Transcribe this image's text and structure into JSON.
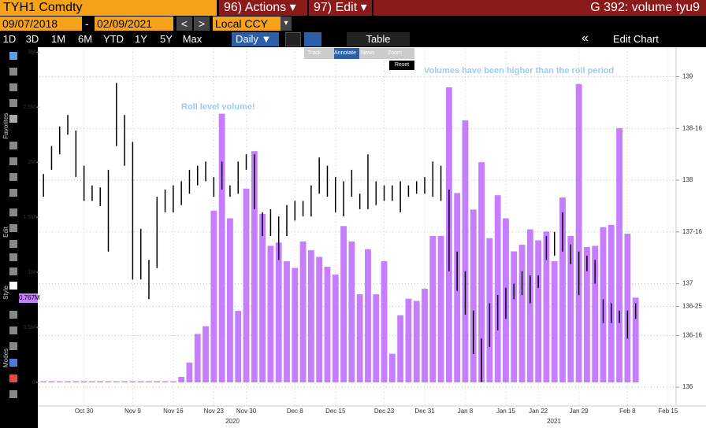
{
  "header": {
    "security": "TYH1 Comdty",
    "actions": "96) Actions ▾",
    "edit": "97) Edit ▾",
    "page_title": "G 392: volume tyu9"
  },
  "range_bar": {
    "start": "09/07/2018",
    "dash": "-",
    "end": "02/09/2021",
    "prev": "<",
    "next": ">",
    "currency": "Local CCY",
    "currency_menu": "▾"
  },
  "periods": [
    "1D",
    "3D",
    "1M",
    "6M",
    "YTD",
    "1Y",
    "5Y",
    "Max"
  ],
  "toolbar": {
    "frequency": "Daily ▼",
    "table": "Table",
    "collapse": "«",
    "edit_chart": "Edit Chart"
  },
  "overlay": {
    "tools": [
      "Track",
      "Annotate",
      "News",
      "Zoom"
    ],
    "reset": "Reset"
  },
  "sidebar": [
    "Favorites",
    "Edit",
    "Style",
    "Modes"
  ],
  "chart_data": {
    "type": "bar",
    "annotations": [
      "Roll level volume!",
      "Volumes have been higher than the roll period"
    ],
    "year_labels": [
      "2020",
      "2021"
    ],
    "last_value": {
      "value": 767000,
      "label": "0.767M"
    },
    "categories": [
      null,
      null,
      null,
      null,
      null,
      "Oct 30",
      null,
      null,
      null,
      null,
      null,
      "Nov 9",
      null,
      null,
      null,
      null,
      "Nov 16",
      null,
      null,
      null,
      null,
      "Nov 23",
      null,
      null,
      null,
      "Nov 30",
      null,
      null,
      null,
      null,
      null,
      "Dec 8",
      null,
      null,
      null,
      null,
      "Dec 15",
      null,
      null,
      null,
      null,
      null,
      "Dec 23",
      null,
      null,
      null,
      null,
      "Dec 31",
      null,
      null,
      null,
      null,
      "Jan 8",
      null,
      null,
      null,
      null,
      "Jan 15",
      null,
      null,
      null,
      "Jan 22",
      null,
      null,
      null,
      null,
      "Jan 29",
      null,
      null,
      null,
      null,
      null,
      "Feb 8",
      null,
      null,
      null,
      null,
      "Feb 15"
    ],
    "volume": {
      "color": "#c77dff",
      "values": [
        10000,
        10000,
        10000,
        10000,
        10000,
        10000,
        10000,
        10000,
        10000,
        10000,
        10000,
        10000,
        10000,
        10000,
        10000,
        10000,
        10000,
        50000,
        180000,
        440000,
        510000,
        1560000,
        2440000,
        1490000,
        650000,
        1760000,
        2100000,
        1530000,
        1240000,
        1270000,
        1100000,
        1040000,
        1280000,
        1200000,
        1140000,
        1050000,
        980000,
        1420000,
        1280000,
        800000,
        1210000,
        800000,
        1100000,
        260000,
        610000,
        760000,
        740000,
        850000,
        1330000,
        1330000,
        2680000,
        1720000,
        2380000,
        1570000,
        2000000,
        1310000,
        1700000,
        1490000,
        1190000,
        1250000,
        1390000,
        1290000,
        1370000,
        1100000,
        1680000,
        1330000,
        2710000,
        1230000,
        1240000,
        1410000,
        1430000,
        2310000,
        1350000,
        770000,
        null,
        null,
        null,
        null
      ]
    },
    "price": {
      "color": "#000000",
      "axis": "y2",
      "high": [
        138.06,
        138.33,
        138.52,
        138.63,
        138.48,
        138.14,
        137.95,
        137.93,
        138.1,
        138.94,
        138.63,
        138.37,
        137.53,
        137.23,
        137.84,
        137.91,
        137.95,
        137.99,
        138.1,
        138.14,
        138.18,
        138.03,
        138.18,
        137.95,
        138.18,
        138.25,
        138.25,
        137.69,
        137.72,
        137.65,
        137.76,
        137.8,
        137.8,
        137.95,
        138.22,
        138.14,
        138.03,
        137.99,
        138.1,
        137.87,
        138.25,
        137.99,
        137.95,
        137.95,
        137.99,
        137.95,
        137.99,
        138.03,
        138.18,
        138.14,
        137.91,
        137.31,
        137.12,
        136.74,
        136.47,
        136.81,
        136.89,
        136.96,
        137.0,
        137.12,
        137.08,
        137.08,
        137.46,
        137.5,
        137.69,
        137.38,
        137.31,
        137.27,
        137.23,
        136.85,
        136.81,
        136.74,
        136.74,
        136.81,
        null,
        null,
        null,
        null
      ],
      "low": [
        137.84,
        138.1,
        138.25,
        138.44,
        138.03,
        137.8,
        137.8,
        137.75,
        137.31,
        138.33,
        138.14,
        137.04,
        137.04,
        136.85,
        137.15,
        137.69,
        137.69,
        137.76,
        137.87,
        137.95,
        137.99,
        137.84,
        137.91,
        137.84,
        137.87,
        138.1,
        137.72,
        137.46,
        137.46,
        137.23,
        137.46,
        137.61,
        137.65,
        137.65,
        137.87,
        137.84,
        137.69,
        137.65,
        137.84,
        137.72,
        137.72,
        137.76,
        137.8,
        137.8,
        137.69,
        137.84,
        137.87,
        137.87,
        137.84,
        137.8,
        137.12,
        136.93,
        136.7,
        136.32,
        136.05,
        136.39,
        136.55,
        136.66,
        136.85,
        136.89,
        136.81,
        136.96,
        137.23,
        137.27,
        137.31,
        137.19,
        136.89,
        137.12,
        137.0,
        136.62,
        136.62,
        136.62,
        136.47,
        136.66,
        null,
        null,
        null,
        null
      ]
    },
    "ylim": [
      -100000,
      3030000
    ],
    "yticks": [
      0,
      {
        "value": 500000,
        "label": "0.5M"
      },
      {
        "value": 1000000,
        "label": "1M"
      },
      {
        "value": 1500000,
        "label": "1.5M"
      },
      {
        "value": 2000000,
        "label": "2M"
      },
      {
        "value": 2500000,
        "label": "2.5M"
      },
      {
        "value": 3000000,
        "label": "3M"
      }
    ],
    "y2lim": [
      135.94,
      139.27
    ],
    "y2ticks": [
      136,
      {
        "value": 136.5,
        "label": "136-16"
      },
      {
        "value": 136.78125,
        "label": "136-25"
      },
      137,
      {
        "value": 137.5,
        "label": "137-16"
      },
      138,
      {
        "value": 138.5,
        "label": "138-16"
      },
      139
    ],
    "grid": true
  }
}
